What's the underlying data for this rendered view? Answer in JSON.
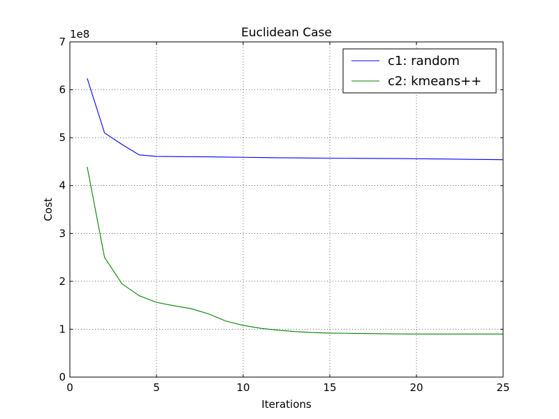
{
  "chart_data": {
    "type": "line",
    "title": "Euclidean Case",
    "xlabel": "Iterations",
    "ylabel": "Cost",
    "y_offset_label": "1e8",
    "xlim": [
      0,
      25
    ],
    "ylim": [
      0,
      7
    ],
    "x_ticks": [
      0,
      5,
      10,
      15,
      20,
      25
    ],
    "y_ticks": [
      0,
      1,
      2,
      3,
      4,
      5,
      6,
      7
    ],
    "grid": true,
    "legend_position": "top-right",
    "series": [
      {
        "name": "c1: random",
        "color": "#0000ff",
        "x": [
          1,
          2,
          3,
          4,
          5,
          6,
          7,
          8,
          9,
          10,
          11,
          12,
          13,
          14,
          15,
          16,
          17,
          18,
          19,
          20,
          21,
          22,
          23,
          24,
          25
        ],
        "values": [
          6.24,
          5.1,
          4.86,
          4.64,
          4.61,
          4.605,
          4.602,
          4.6,
          4.595,
          4.59,
          4.585,
          4.58,
          4.578,
          4.575,
          4.572,
          4.57,
          4.568,
          4.566,
          4.564,
          4.56,
          4.557,
          4.552,
          4.548,
          4.544,
          4.54
        ]
      },
      {
        "name": "c2: kmeans++",
        "color": "#008000",
        "x": [
          1,
          2,
          3,
          4,
          5,
          6,
          7,
          8,
          9,
          10,
          11,
          12,
          13,
          14,
          15,
          16,
          17,
          18,
          19,
          20,
          21,
          22,
          23,
          24,
          25
        ],
        "values": [
          4.39,
          2.5,
          1.95,
          1.7,
          1.56,
          1.49,
          1.43,
          1.32,
          1.17,
          1.08,
          1.02,
          0.98,
          0.95,
          0.93,
          0.92,
          0.915,
          0.91,
          0.905,
          0.902,
          0.9,
          0.9,
          0.9,
          0.9,
          0.9,
          0.9
        ]
      }
    ]
  }
}
